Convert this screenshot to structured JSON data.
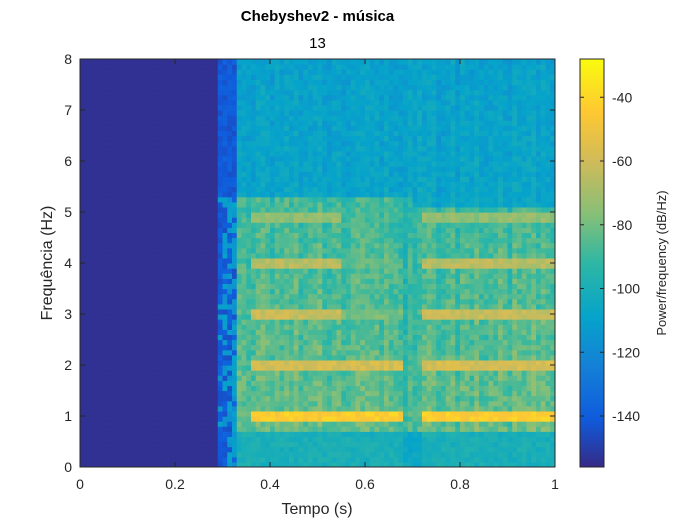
{
  "chart_data": {
    "type": "heatmap",
    "title": "Chebyshev2 - música",
    "subtitle": "13",
    "xlabel": "Tempo (s)",
    "ylabel": "Frequência (Hz)",
    "xlim": [
      0,
      1
    ],
    "ylim": [
      0,
      8
    ],
    "xticks": [
      "0",
      "0.2",
      "0.4",
      "0.6",
      "0.8",
      "1"
    ],
    "yticks": [
      "0",
      "1",
      "2",
      "3",
      "4",
      "5",
      "6",
      "7",
      "8"
    ],
    "colorbar": {
      "label": "Power/frequency (dB/Hz)",
      "ticks": [
        "-140",
        "-120",
        "-100",
        "-80",
        "-60",
        "-40"
      ],
      "range": [
        -156,
        -28
      ],
      "colormap": "parula"
    },
    "description_values": {
      "silence_until_s": 0.3,
      "background_high_freq_dB": -110,
      "active_region_upper_hz": 5.3,
      "harmonics_hz": [
        1,
        2,
        3,
        4,
        4.9
      ],
      "harmonic_peak_dB": [
        -40,
        -55,
        -58,
        -62,
        -70
      ],
      "gap_interval_s": [
        0.68,
        0.72
      ]
    }
  }
}
